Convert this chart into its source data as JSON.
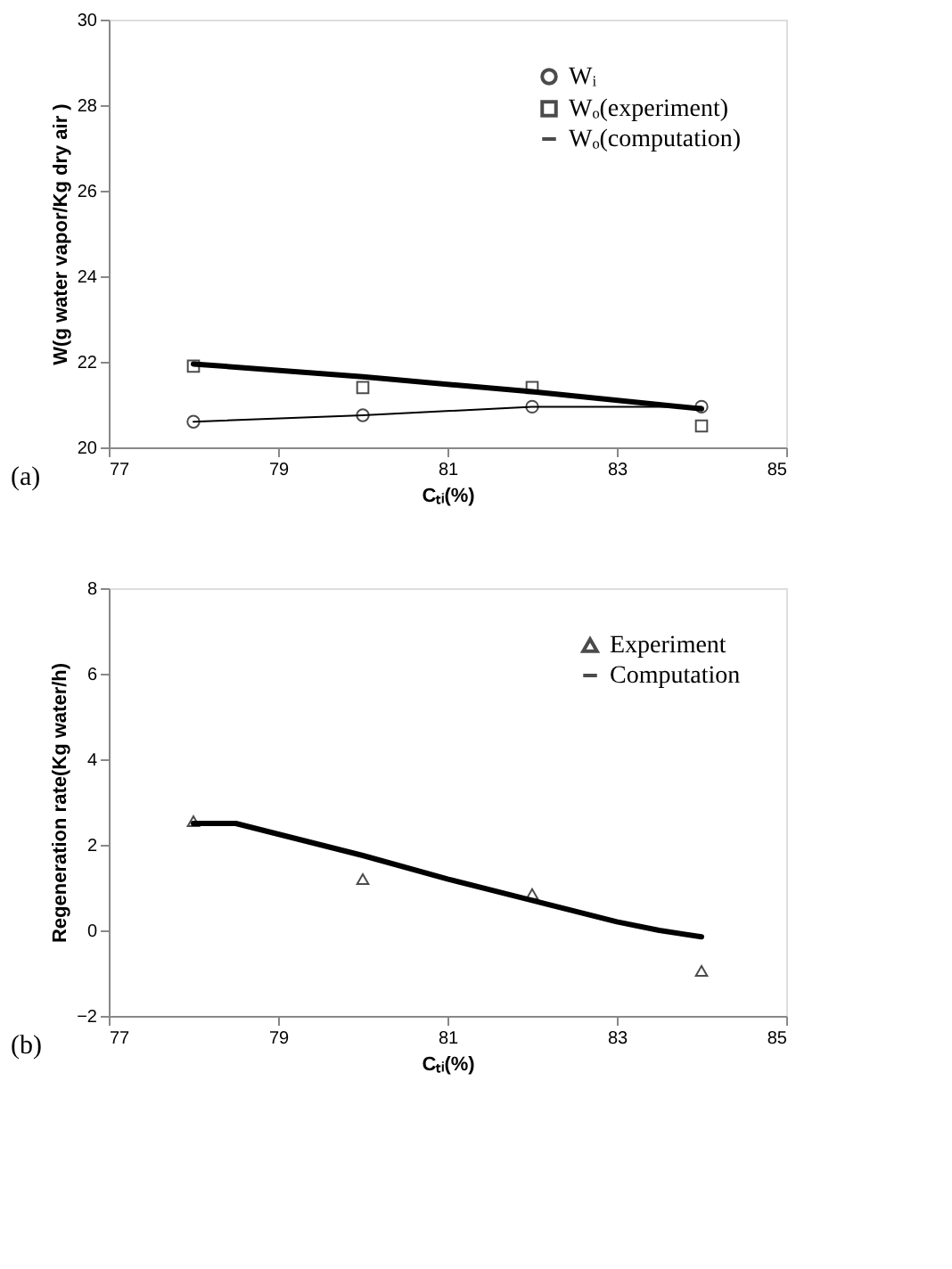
{
  "chart_data": [
    {
      "type": "line",
      "xlabel": "Cₜᵢ(%)",
      "ylabel": "W(g water vapor/Kg dry air )",
      "annotations": [
        "(a)"
      ],
      "xlim": [
        77,
        85
      ],
      "xticks": [
        77,
        79,
        81,
        83,
        85
      ],
      "ylim": [
        20,
        30
      ],
      "yticks": [
        20,
        22,
        24,
        26,
        28,
        30
      ],
      "grid": false,
      "legend": "top right",
      "series": [
        {
          "name": "Wᵢ",
          "line_style": "solid",
          "marker": "circle",
          "color": "#000000",
          "x": [
            78,
            80,
            82,
            84
          ],
          "values": [
            20.6,
            20.75,
            20.95,
            20.95
          ]
        },
        {
          "name": "Wₒ(experiment)",
          "type": "scatter",
          "marker": "square",
          "color": "#000000",
          "x": [
            78,
            80,
            82,
            84
          ],
          "values": [
            21.9,
            21.4,
            21.4,
            20.5
          ]
        },
        {
          "name": "Wₒ(computation)",
          "line_style": "solid",
          "marker": "none",
          "color": "#000000",
          "x": [
            78,
            80,
            82,
            84
          ],
          "values": [
            21.95,
            21.65,
            21.3,
            20.9
          ]
        }
      ]
    },
    {
      "type": "line",
      "xlabel": "Cₜᵢ(%)",
      "ylabel": "Regeneration rate(Kg water/h)",
      "annotations": [
        "(b)"
      ],
      "xlim": [
        77,
        85
      ],
      "xticks": [
        77,
        79,
        81,
        83,
        85
      ],
      "ylim": [
        -2,
        8
      ],
      "yticks": [
        -2,
        0,
        2,
        4,
        6,
        8
      ],
      "grid": false,
      "legend": "top right",
      "series": [
        {
          "name": "Experiment",
          "type": "scatter",
          "marker": "triangle",
          "color": "#000000",
          "x": [
            78,
            80,
            82,
            84
          ],
          "values": [
            2.55,
            1.2,
            0.85,
            -0.95
          ]
        },
        {
          "name": "Computation",
          "line_style": "solid",
          "marker": "none",
          "color": "#000000",
          "x": [
            78,
            78.5,
            79,
            80,
            81,
            82,
            83,
            83.5,
            84
          ],
          "values": [
            2.5,
            2.5,
            2.25,
            1.75,
            1.2,
            0.7,
            0.2,
            0.0,
            -0.15
          ]
        }
      ]
    }
  ]
}
